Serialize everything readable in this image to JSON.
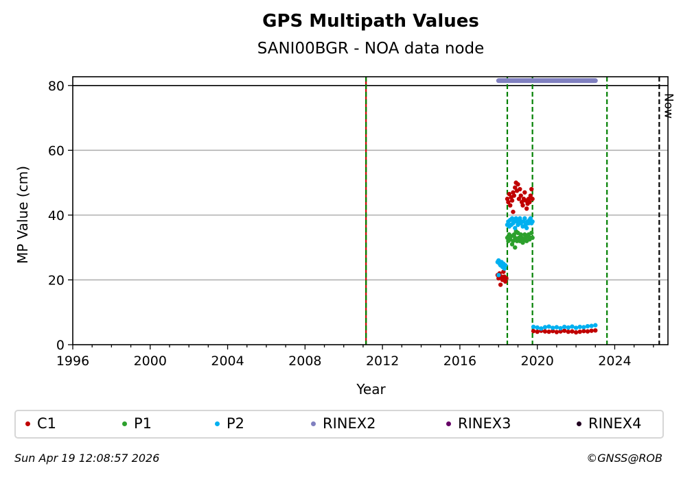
{
  "chart_data": {
    "type": "scatter",
    "title": "GPS Multipath Values",
    "subtitle": "SANI00BGR - NOA data node",
    "xlabel": "Year",
    "ylabel": "MP Value (cm)",
    "xlim": [
      1996,
      2026.75
    ],
    "ylim": [
      0,
      82.7
    ],
    "xticks": [
      1996,
      2000,
      2004,
      2008,
      2012,
      2016,
      2020,
      2024
    ],
    "yticks": [
      0,
      20,
      40,
      60,
      80
    ],
    "grid": "y",
    "legend_position": "bottom",
    "reference_line": {
      "y": 80,
      "color": "#000000"
    },
    "events": [
      {
        "year": 2011.15,
        "color": "#cc0000",
        "style": "solid"
      },
      {
        "year": 2011.15,
        "color": "#008000",
        "style": "dashed"
      },
      {
        "year": 2018.45,
        "color": "#008000",
        "style": "dashed"
      },
      {
        "year": 2019.75,
        "color": "#008000",
        "style": "dashed"
      },
      {
        "year": 2023.6,
        "color": "#008000",
        "style": "dashed"
      },
      {
        "year": 2026.3,
        "color": "#000000",
        "style": "dashed",
        "label": "Now"
      }
    ],
    "rinex_bars": [
      {
        "name": "RINEX2",
        "start": 2018.0,
        "end": 2023.0,
        "y": 81.5,
        "color": "#8080c0"
      }
    ],
    "series": [
      {
        "name": "C1",
        "color": "#c00000",
        "points": [
          [
            2017.95,
            21.5
          ],
          [
            2018.0,
            20.5
          ],
          [
            2018.05,
            22
          ],
          [
            2018.1,
            18.5
          ],
          [
            2018.15,
            21
          ],
          [
            2018.2,
            20
          ],
          [
            2018.25,
            22.5
          ],
          [
            2018.3,
            21
          ],
          [
            2018.35,
            19.5
          ],
          [
            2018.4,
            20.5
          ],
          [
            2018.45,
            45
          ],
          [
            2018.5,
            44
          ],
          [
            2018.55,
            46.5
          ],
          [
            2018.6,
            43
          ],
          [
            2018.65,
            45.5
          ],
          [
            2018.7,
            44.5
          ],
          [
            2018.75,
            47
          ],
          [
            2018.8,
            46
          ],
          [
            2018.85,
            48.5
          ],
          [
            2018.9,
            50
          ],
          [
            2018.95,
            47.5
          ],
          [
            2019.0,
            49.5
          ],
          [
            2019.05,
            45
          ],
          [
            2019.1,
            48
          ],
          [
            2019.15,
            46
          ],
          [
            2019.2,
            44
          ],
          [
            2019.25,
            43
          ],
          [
            2019.3,
            45
          ],
          [
            2019.35,
            47
          ],
          [
            2019.4,
            44.5
          ],
          [
            2019.45,
            42
          ],
          [
            2019.5,
            43.5
          ],
          [
            2019.55,
            45
          ],
          [
            2019.6,
            44
          ],
          [
            2019.65,
            46
          ],
          [
            2019.7,
            48
          ],
          [
            2019.75,
            45
          ],
          [
            2018.75,
            41
          ],
          [
            2019.8,
            4.2
          ],
          [
            2020.0,
            4.0
          ],
          [
            2020.2,
            4.3
          ],
          [
            2020.4,
            4.1
          ],
          [
            2020.6,
            4.0
          ],
          [
            2020.8,
            4.2
          ],
          [
            2021.0,
            3.9
          ],
          [
            2021.2,
            4.1
          ],
          [
            2021.4,
            4.3
          ],
          [
            2021.6,
            4.0
          ],
          [
            2021.8,
            4.1
          ],
          [
            2022.0,
            3.8
          ],
          [
            2022.2,
            4.0
          ],
          [
            2022.4,
            4.2
          ],
          [
            2022.6,
            4.1
          ],
          [
            2022.8,
            4.3
          ],
          [
            2023.0,
            4.4
          ]
        ]
      },
      {
        "name": "P1",
        "color": "#2ca02c",
        "points": [
          [
            2018.45,
            33
          ],
          [
            2018.5,
            32
          ],
          [
            2018.55,
            34
          ],
          [
            2018.6,
            32.5
          ],
          [
            2018.65,
            33.5
          ],
          [
            2018.7,
            31
          ],
          [
            2018.75,
            32
          ],
          [
            2018.8,
            34
          ],
          [
            2018.85,
            33
          ],
          [
            2018.9,
            35
          ],
          [
            2018.95,
            32
          ],
          [
            2019.0,
            34.5
          ],
          [
            2019.05,
            33
          ],
          [
            2019.1,
            32
          ],
          [
            2019.15,
            34
          ],
          [
            2019.2,
            33
          ],
          [
            2019.25,
            31.5
          ],
          [
            2019.3,
            32.5
          ],
          [
            2019.35,
            34
          ],
          [
            2019.4,
            33
          ],
          [
            2019.45,
            32
          ],
          [
            2019.5,
            33.5
          ],
          [
            2019.55,
            34
          ],
          [
            2019.6,
            32.5
          ],
          [
            2019.65,
            33
          ],
          [
            2019.7,
            34.5
          ],
          [
            2019.75,
            33
          ],
          [
            2018.85,
            30
          ]
        ]
      },
      {
        "name": "P2",
        "color": "#00b0f0",
        "points": [
          [
            2017.95,
            25.5
          ],
          [
            2018.0,
            26
          ],
          [
            2018.05,
            25
          ],
          [
            2018.1,
            24.5
          ],
          [
            2018.15,
            25.5
          ],
          [
            2018.2,
            24
          ],
          [
            2018.25,
            25
          ],
          [
            2018.3,
            23.5
          ],
          [
            2018.35,
            24.5
          ],
          [
            2018.0,
            21.5
          ],
          [
            2018.45,
            37
          ],
          [
            2018.5,
            38
          ],
          [
            2018.55,
            36.5
          ],
          [
            2018.6,
            38.5
          ],
          [
            2018.65,
            37
          ],
          [
            2018.7,
            39
          ],
          [
            2018.75,
            37.5
          ],
          [
            2018.8,
            38
          ],
          [
            2018.85,
            36
          ],
          [
            2018.9,
            39
          ],
          [
            2018.95,
            38
          ],
          [
            2019.0,
            37
          ],
          [
            2019.05,
            38.5
          ],
          [
            2019.1,
            39
          ],
          [
            2019.15,
            37.5
          ],
          [
            2019.2,
            38
          ],
          [
            2019.25,
            36.5
          ],
          [
            2019.3,
            38
          ],
          [
            2019.35,
            39
          ],
          [
            2019.4,
            37
          ],
          [
            2019.45,
            36
          ],
          [
            2019.5,
            38
          ],
          [
            2019.55,
            37.5
          ],
          [
            2019.6,
            38.5
          ],
          [
            2019.65,
            39
          ],
          [
            2019.7,
            37.5
          ],
          [
            2019.75,
            38
          ],
          [
            2019.8,
            5.5
          ],
          [
            2020.0,
            5.3
          ],
          [
            2020.2,
            5.0
          ],
          [
            2020.4,
            5.4
          ],
          [
            2020.6,
            5.6
          ],
          [
            2020.8,
            5.2
          ],
          [
            2021.0,
            5.4
          ],
          [
            2021.2,
            5.1
          ],
          [
            2021.4,
            5.5
          ],
          [
            2021.6,
            5.3
          ],
          [
            2021.8,
            5.6
          ],
          [
            2022.0,
            5.2
          ],
          [
            2022.2,
            5.5
          ],
          [
            2022.4,
            5.4
          ],
          [
            2022.6,
            5.7
          ],
          [
            2022.8,
            5.8
          ],
          [
            2023.0,
            6.0
          ]
        ]
      }
    ]
  },
  "legend": [
    {
      "label": "C1",
      "color": "#c00000"
    },
    {
      "label": "P1",
      "color": "#2ca02c"
    },
    {
      "label": "P2",
      "color": "#00b0f0"
    },
    {
      "label": "RINEX2",
      "color": "#8080c0"
    },
    {
      "label": "RINEX3",
      "color": "#660066"
    },
    {
      "label": "RINEX4",
      "color": "#200020"
    }
  ],
  "footer": {
    "date": "Sun Apr 19 12:08:57 2026",
    "copyright": "©GNSS@ROB"
  }
}
